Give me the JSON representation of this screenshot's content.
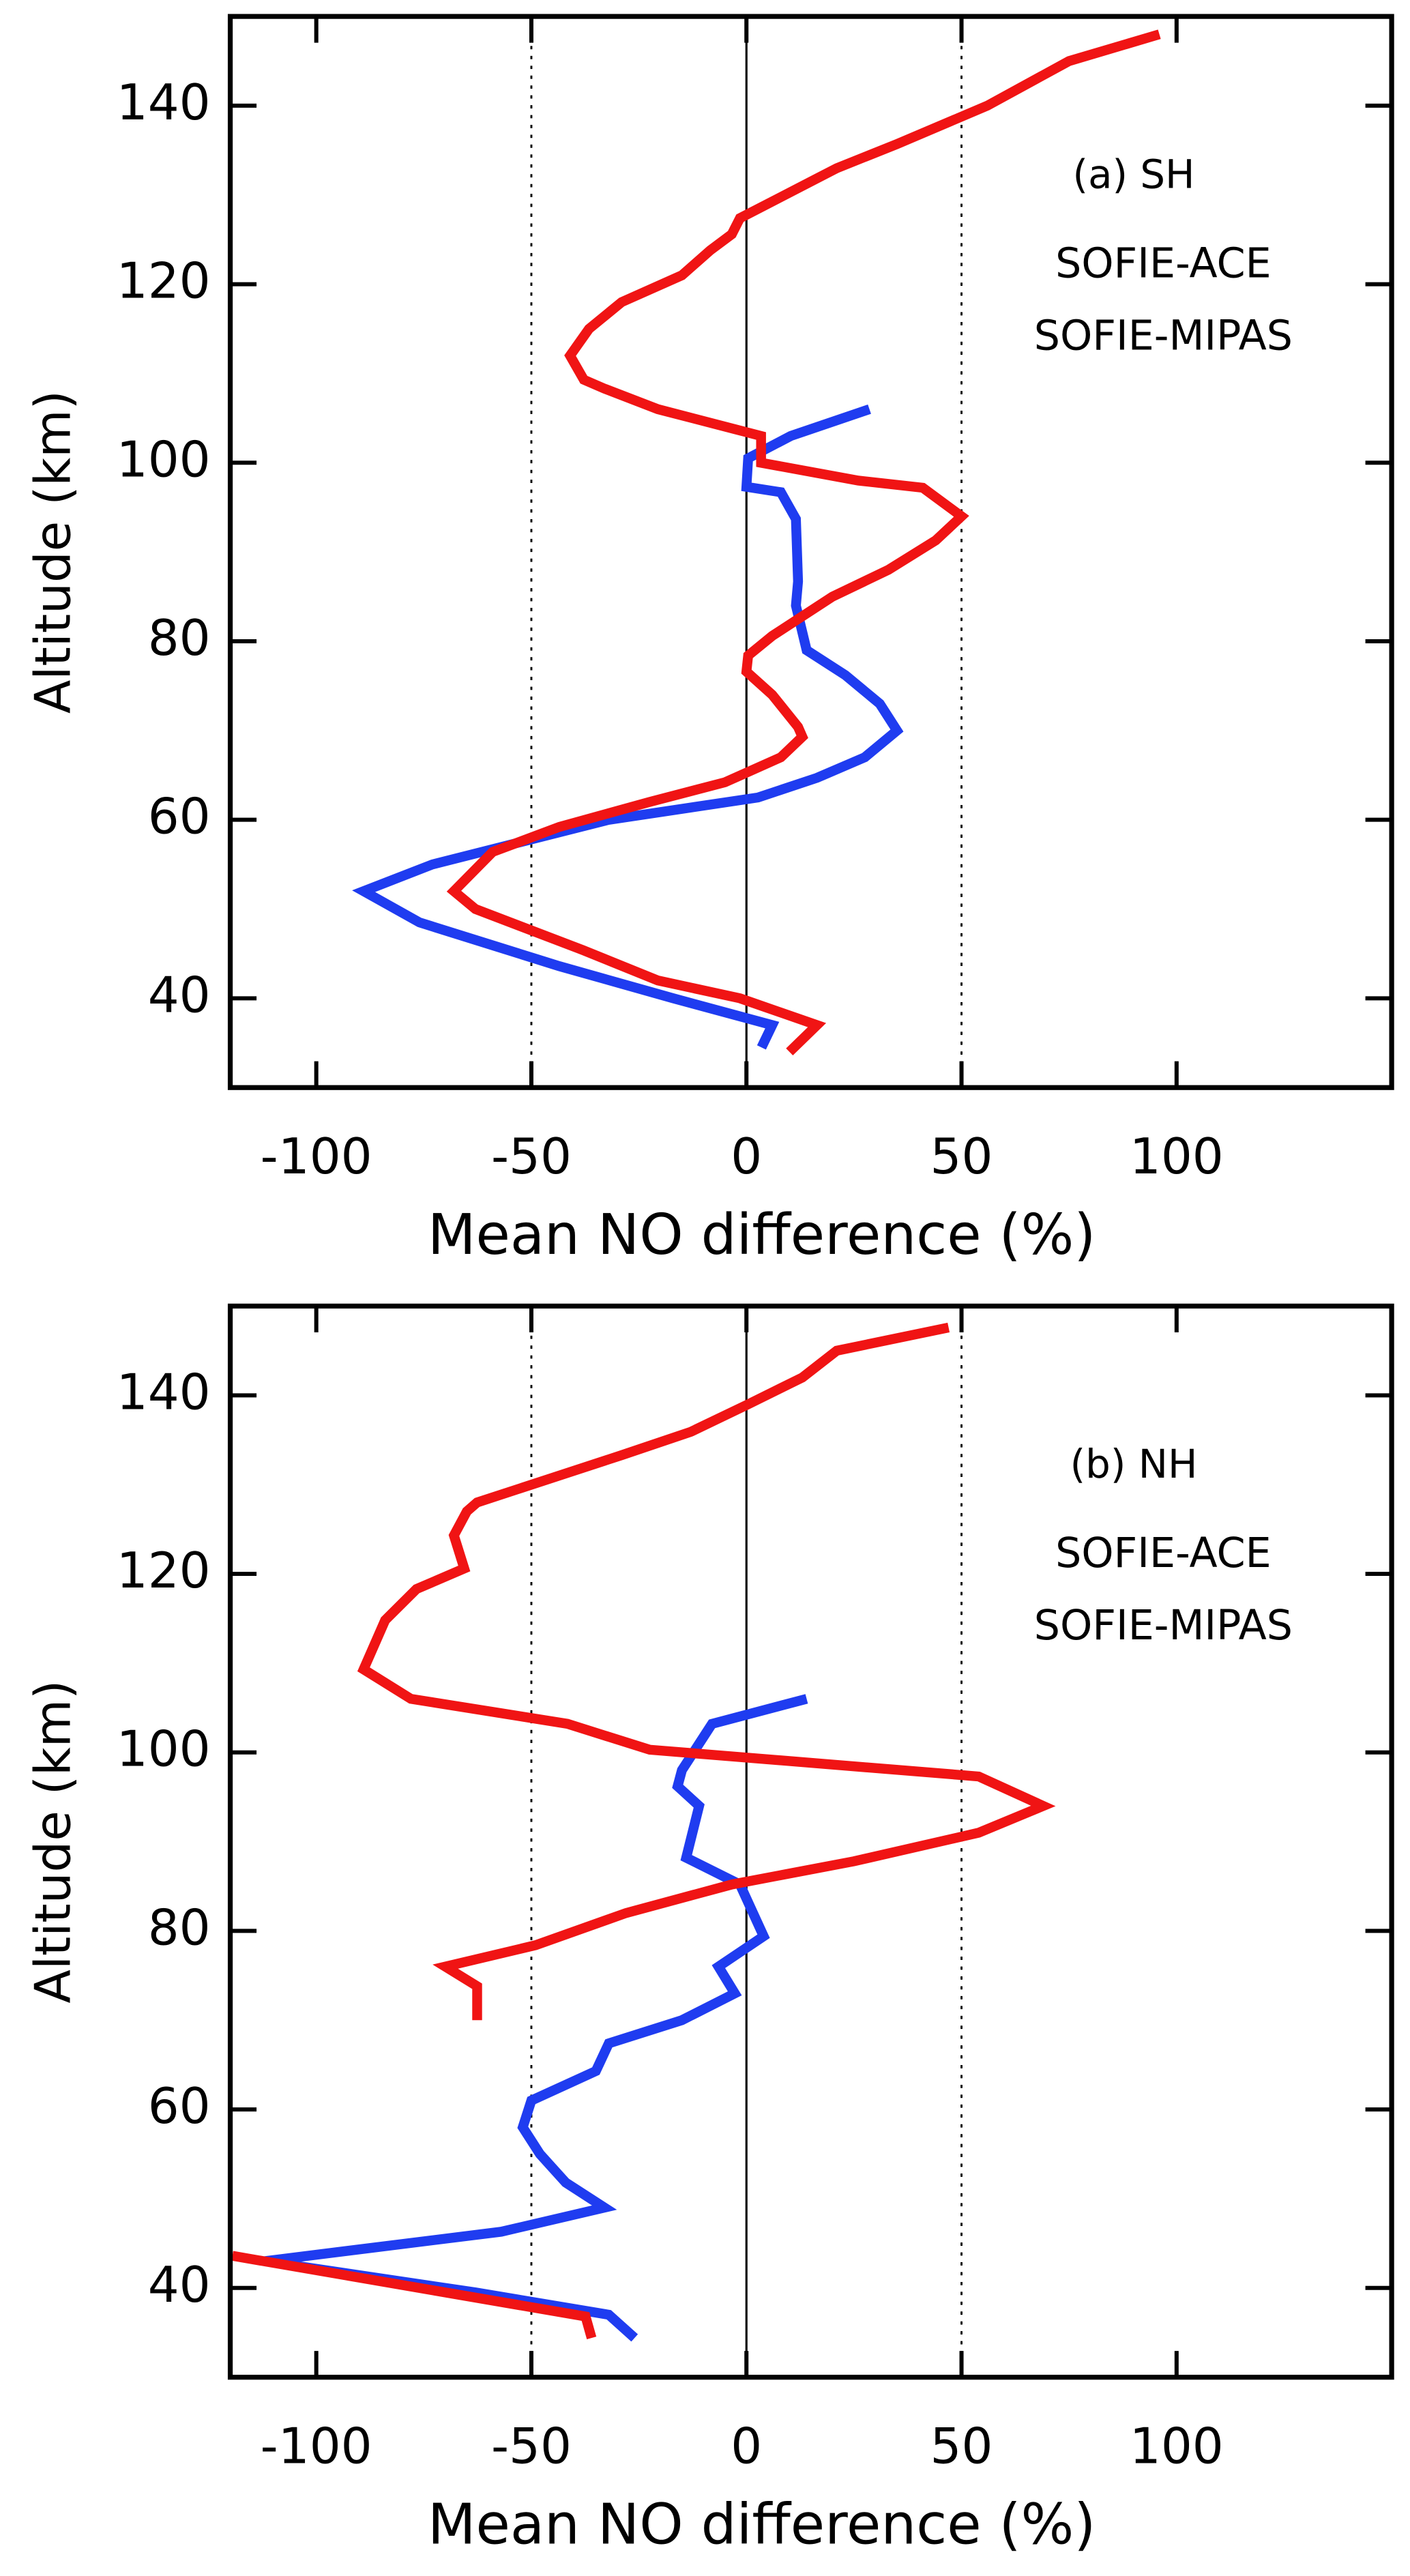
{
  "chart_data": [
    {
      "type": "line",
      "panel_label": "(a) SH",
      "xlabel": "Mean NO difference (%)",
      "ylabel": "Altitude (km)",
      "xlim": [
        -120,
        150
      ],
      "ylim": [
        30,
        150
      ],
      "xticks": [
        -100,
        -50,
        0,
        50,
        100
      ],
      "yticks": [
        40,
        60,
        80,
        100,
        120,
        140
      ],
      "vlines": [
        -50,
        0,
        50
      ],
      "series": [
        {
          "name": "SOFIE-ACE",
          "color": "#1f3cf0",
          "x": [
            28.6,
            10.3,
            0.4,
            0,
            8,
            11.5,
            12,
            11.5,
            14,
            23,
            31,
            35,
            27.5,
            16.4,
            2.7,
            -32,
            -73,
            -89,
            -76,
            -43.5,
            -17,
            6,
            3.5
          ],
          "y": [
            106,
            103,
            100.5,
            97.3,
            96.7,
            93.7,
            86.7,
            84,
            79,
            76.2,
            73,
            70,
            67,
            64.7,
            62.5,
            60,
            55,
            52,
            48.5,
            43.6,
            40,
            37,
            34.5
          ]
        },
        {
          "name": "SOFIE-MIPAS",
          "color": "#f01414",
          "x": [
            96,
            75,
            56,
            35,
            21,
            -1.5,
            -3.4,
            -8.4,
            -15,
            -29,
            -36.6,
            -41,
            -37.8,
            -33,
            -20.6,
            3.4,
            3.4,
            26,
            41,
            50,
            44,
            33,
            20,
            6,
            0.4,
            0,
            6,
            12,
            13,
            8,
            -5,
            -22.5,
            -43.5,
            -59,
            -68,
            -63,
            -38,
            -20.6,
            -1.5,
            16.4,
            10
          ],
          "y": [
            148,
            145,
            140,
            135.7,
            133,
            127.4,
            125.6,
            123.8,
            121,
            118,
            115,
            112,
            109.3,
            108.3,
            106,
            103,
            100,
            98,
            97.2,
            94,
            91.3,
            88,
            85,
            80.6,
            78.4,
            76.6,
            74,
            70.4,
            69.3,
            67,
            64.2,
            62,
            59.2,
            56.4,
            52,
            50,
            45.4,
            42,
            40,
            37,
            34
          ]
        }
      ]
    },
    {
      "type": "line",
      "panel_label": "(b) NH",
      "xlabel": "Mean NO difference (%)",
      "ylabel": "Altitude (km)",
      "xlim": [
        -120,
        150
      ],
      "ylim": [
        30,
        150
      ],
      "xticks": [
        -100,
        -50,
        0,
        50,
        100
      ],
      "yticks": [
        40,
        60,
        80,
        100,
        120,
        140
      ],
      "vlines": [
        -50,
        0,
        50
      ],
      "series": [
        {
          "name": "SOFIE-ACE",
          "color": "#1f3cf0",
          "x": [
            14,
            -8,
            -15,
            -16,
            -11,
            -14,
            -1.5,
            4,
            -6.5,
            -2.7,
            -15,
            -32,
            -35,
            -50,
            -52,
            -48,
            -42,
            -33,
            -57,
            -112,
            -63,
            -32,
            -26
          ],
          "y": [
            106,
            103.2,
            98,
            96.2,
            94,
            88.2,
            85.2,
            79.4,
            76,
            73,
            70,
            67.4,
            64.3,
            61,
            58,
            55,
            51.8,
            49,
            46.3,
            43,
            39.5,
            37,
            34.4
          ]
        },
        {
          "name": "SOFIE-MIPAS",
          "color": "#f01414",
          "x": [
            47,
            21,
            13,
            0.4,
            -13,
            -29,
            -62.6,
            -65,
            -68,
            -65.6,
            -76.7,
            -84,
            -89,
            -78,
            -41.6,
            -22.5,
            54,
            69,
            54,
            25,
            -3.4,
            -28,
            -49,
            -70,
            -62.6,
            -62.6,
            null,
            -119.5,
            -37.4,
            -36
          ],
          "y": [
            147.6,
            145,
            142,
            139,
            135.9,
            133.3,
            128,
            127,
            124.3,
            120.6,
            118.3,
            114.8,
            109.3,
            106,
            103.2,
            100.3,
            97.3,
            94,
            91,
            87.8,
            85.2,
            82,
            78.4,
            76,
            73.8,
            70,
            null,
            43.6,
            36.8,
            34.4
          ]
        }
      ]
    }
  ]
}
